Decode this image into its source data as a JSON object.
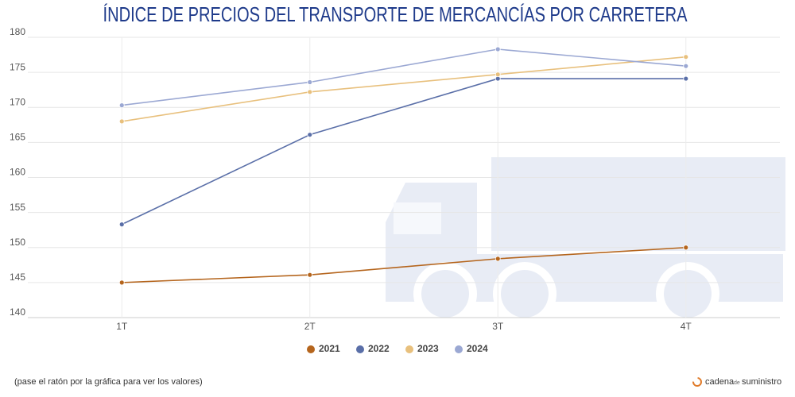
{
  "chart_data": {
    "type": "line",
    "title": "ÍNDICE DE PRECIOS DEL TRANSPORTE DE MERCANCÍAS POR CARRETERA",
    "categories": [
      "1T",
      "2T",
      "3T",
      "4T"
    ],
    "series": [
      {
        "name": "2021",
        "color": "#b5651d",
        "values": [
          145.0,
          146.1,
          148.4,
          150.0
        ]
      },
      {
        "name": "2022",
        "color": "#5a6fa8",
        "values": [
          153.3,
          166.1,
          174.1,
          174.1
        ]
      },
      {
        "name": "2023",
        "color": "#e8c07d",
        "values": [
          168.0,
          172.2,
          174.7,
          177.2
        ]
      },
      {
        "name": "2024",
        "color": "#9ba8d3",
        "values": [
          170.3,
          173.6,
          178.3,
          175.9
        ]
      }
    ],
    "ylim": [
      140,
      180
    ],
    "yticks": [
      140,
      145,
      150,
      155,
      160,
      165,
      170,
      175,
      180
    ],
    "grid": true,
    "legend": "bottom"
  },
  "footer": {
    "note": "(pase el ratón por la gráfica para ver los valores)",
    "brand": {
      "name": "cadena",
      "middle": "de",
      "suffix": "suministro"
    }
  }
}
